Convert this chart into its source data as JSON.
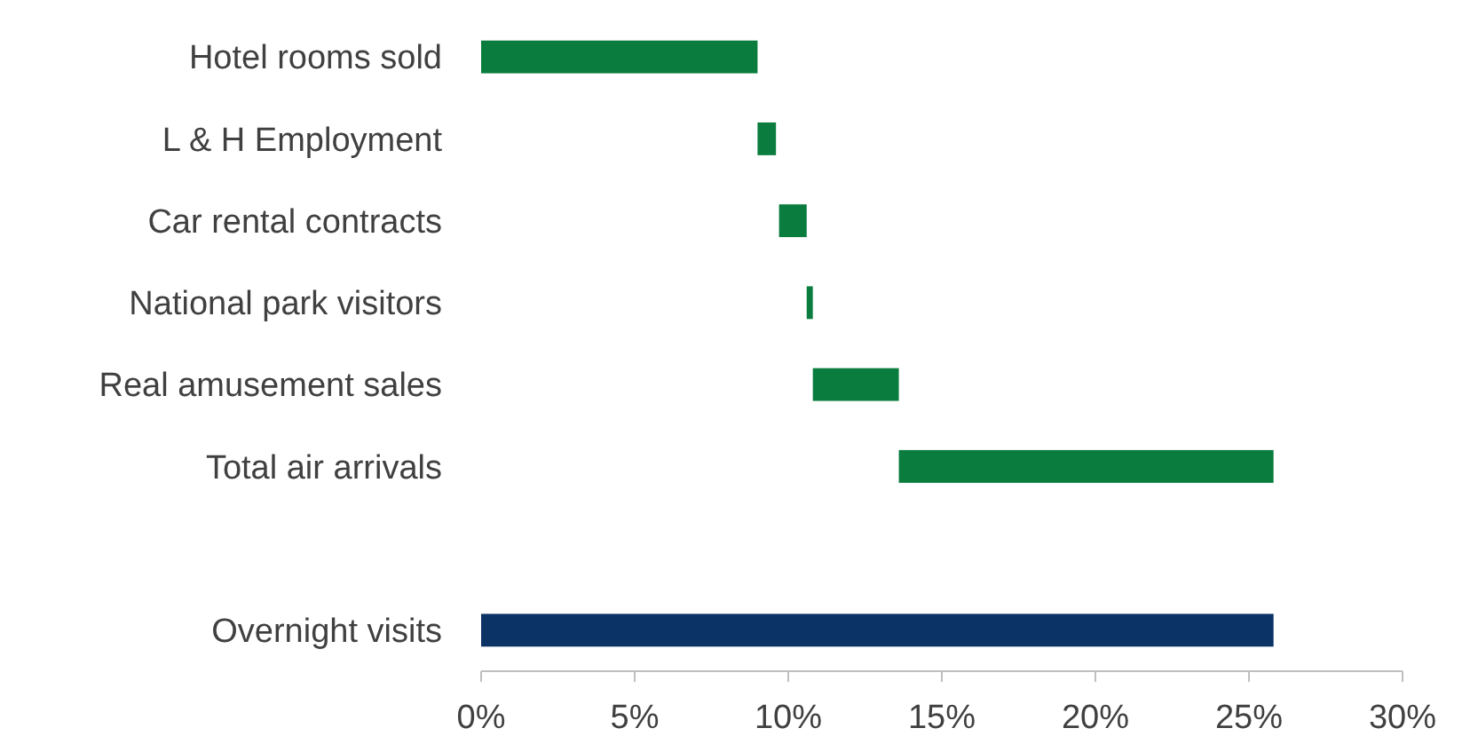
{
  "chart_data": {
    "type": "bar",
    "orientation": "horizontal",
    "categories": [
      "Hotel rooms sold",
      "L & H Employment",
      "Car rental contracts",
      "National park visitors",
      "Real amusement sales",
      "Total air arrivals",
      null,
      "Overnight visits"
    ],
    "values": [
      9.0,
      0.6,
      0.9,
      0.2,
      2.8,
      12.2,
      null,
      25.8
    ],
    "base": [
      0,
      9.0,
      9.7,
      10.6,
      10.8,
      13.6,
      null,
      0
    ],
    "colors": [
      "#0a7d3e",
      "#0a7d3e",
      "#0a7d3e",
      "#0a7d3e",
      "#0a7d3e",
      "#0a7d3e",
      null,
      "#0b3366"
    ],
    "xlim": [
      0,
      30
    ],
    "xticks": [
      {
        "value": 0,
        "label": "0%"
      },
      {
        "value": 5,
        "label": "5%"
      },
      {
        "value": 10,
        "label": "10%"
      },
      {
        "value": 15,
        "label": "15%"
      },
      {
        "value": 20,
        "label": "20%"
      },
      {
        "value": 25,
        "label": "25%"
      },
      {
        "value": 30,
        "label": "30%"
      }
    ],
    "grid": false
  }
}
